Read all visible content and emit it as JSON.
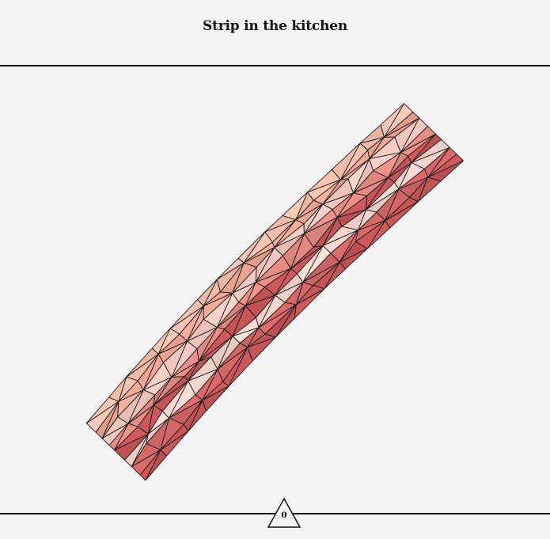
{
  "header": {
    "title": "Strip in the kitchen"
  },
  "footer": {
    "counter_value": "0",
    "counter_icon": "triangle-icon"
  },
  "palette": {
    "dark": "#c85659",
    "mid_dark": "#d7686a",
    "mid": "#e98c86",
    "light_salmon": "#f5a998",
    "pale": "#f9cbc3",
    "very_pale": "#fbd7cf",
    "peach": "#fcc2b0",
    "stroke": "#1a1a1a"
  }
}
